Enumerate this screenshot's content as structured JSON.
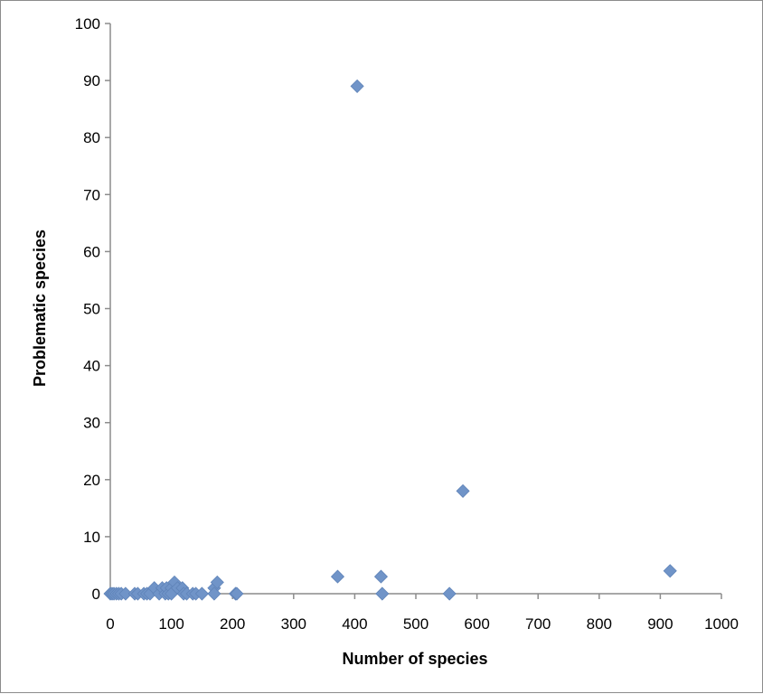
{
  "chart_data": {
    "type": "scatter",
    "title": "",
    "xlabel": "Number of species",
    "ylabel": "Problematic species",
    "xlim": [
      0,
      1000
    ],
    "ylim": [
      0,
      100
    ],
    "x_ticks": [
      "0",
      "100",
      "200",
      "300",
      "400",
      "500",
      "600",
      "700",
      "800",
      "900",
      "1000"
    ],
    "y_ticks": [
      "0",
      "10",
      "20",
      "30",
      "40",
      "50",
      "60",
      "70",
      "80",
      "90",
      "100"
    ],
    "grid": false,
    "legend": "none",
    "marker": "diamond",
    "color": "#7094c8",
    "series": [
      {
        "points": [
          [
            0,
            0
          ],
          [
            3,
            0
          ],
          [
            6,
            0
          ],
          [
            10,
            0
          ],
          [
            14,
            0
          ],
          [
            18,
            0
          ],
          [
            25,
            0
          ],
          [
            40,
            0
          ],
          [
            45,
            0
          ],
          [
            55,
            0
          ],
          [
            60,
            0
          ],
          [
            65,
            0
          ],
          [
            72,
            1
          ],
          [
            80,
            0
          ],
          [
            85,
            1
          ],
          [
            90,
            0
          ],
          [
            92,
            1
          ],
          [
            95,
            0
          ],
          [
            100,
            1
          ],
          [
            100,
            0
          ],
          [
            105,
            2
          ],
          [
            110,
            1
          ],
          [
            118,
            1
          ],
          [
            120,
            0
          ],
          [
            125,
            0
          ],
          [
            135,
            0
          ],
          [
            140,
            0
          ],
          [
            150,
            0
          ],
          [
            170,
            1
          ],
          [
            170,
            0
          ],
          [
            175,
            2
          ],
          [
            205,
            0
          ],
          [
            207,
            0
          ],
          [
            372,
            3
          ],
          [
            404,
            89
          ],
          [
            443,
            3
          ],
          [
            445,
            0
          ],
          [
            555,
            0
          ],
          [
            577,
            18
          ],
          [
            916,
            4
          ]
        ]
      }
    ]
  }
}
